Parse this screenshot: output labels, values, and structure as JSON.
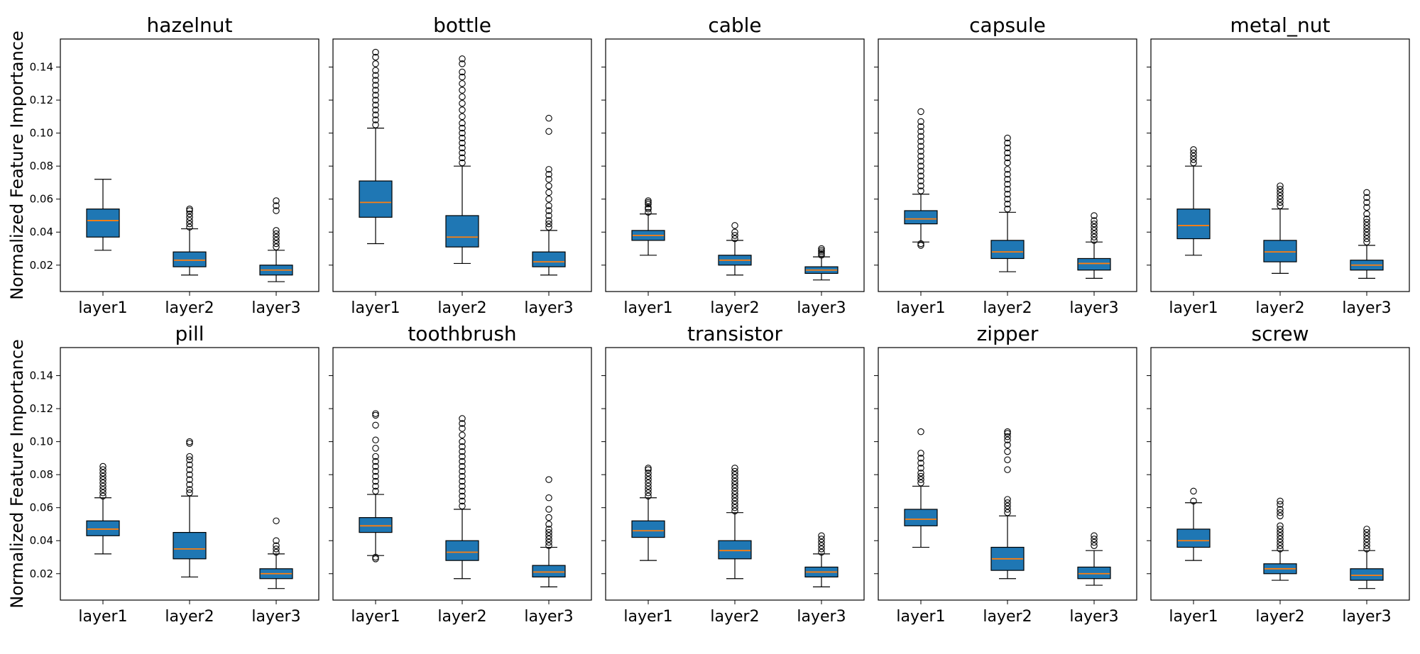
{
  "figure": {
    "ylabel": "Normalized Feature Importance",
    "ytick_labels": [
      "0.02",
      "0.04",
      "0.06",
      "0.08",
      "0.10",
      "0.12",
      "0.14"
    ]
  },
  "colors": {
    "box_fill": "#1f77b4",
    "median": "#ff7f0e",
    "edge": "#000000"
  },
  "chart_data": [
    {
      "type": "box",
      "title": "hazelnut",
      "categories": [
        "layer1",
        "layer2",
        "layer3"
      ],
      "ylim": [
        0.004,
        0.157
      ],
      "yticks": [
        0.02,
        0.04,
        0.06,
        0.08,
        0.1,
        0.12,
        0.14
      ],
      "series": [
        {
          "category": "layer1",
          "whisker_low": 0.029,
          "q1": 0.037,
          "median": 0.047,
          "q3": 0.054,
          "whisker_high": 0.072,
          "outliers": []
        },
        {
          "category": "layer2",
          "whisker_low": 0.014,
          "q1": 0.019,
          "median": 0.023,
          "q3": 0.028,
          "whisker_high": 0.042,
          "outliers": [
            0.043,
            0.045,
            0.047,
            0.049,
            0.051,
            0.053,
            0.054
          ]
        },
        {
          "category": "layer3",
          "whisker_low": 0.01,
          "q1": 0.014,
          "median": 0.017,
          "q3": 0.02,
          "whisker_high": 0.029,
          "outliers": [
            0.031,
            0.033,
            0.035,
            0.037,
            0.039,
            0.041,
            0.053,
            0.056,
            0.059
          ]
        }
      ]
    },
    {
      "type": "box",
      "title": "bottle",
      "categories": [
        "layer1",
        "layer2",
        "layer3"
      ],
      "ylim": [
        0.004,
        0.157
      ],
      "yticks": [
        0.02,
        0.04,
        0.06,
        0.08,
        0.1,
        0.12,
        0.14
      ],
      "series": [
        {
          "category": "layer1",
          "whisker_low": 0.033,
          "q1": 0.049,
          "median": 0.058,
          "q3": 0.071,
          "whisker_high": 0.103,
          "outliers": [
            0.105,
            0.108,
            0.111,
            0.114,
            0.117,
            0.12,
            0.123,
            0.126,
            0.129,
            0.132,
            0.135,
            0.138,
            0.142,
            0.146,
            0.149
          ]
        },
        {
          "category": "layer2",
          "whisker_low": 0.021,
          "q1": 0.031,
          "median": 0.037,
          "q3": 0.05,
          "whisker_high": 0.08,
          "outliers": [
            0.082,
            0.085,
            0.088,
            0.091,
            0.094,
            0.097,
            0.1,
            0.103,
            0.106,
            0.11,
            0.114,
            0.118,
            0.122,
            0.126,
            0.13,
            0.134,
            0.137,
            0.142,
            0.145
          ]
        },
        {
          "category": "layer3",
          "whisker_low": 0.014,
          "q1": 0.019,
          "median": 0.022,
          "q3": 0.028,
          "whisker_high": 0.041,
          "outliers": [
            0.043,
            0.045,
            0.047,
            0.05,
            0.053,
            0.056,
            0.06,
            0.064,
            0.068,
            0.072,
            0.075,
            0.078,
            0.101,
            0.109
          ]
        }
      ]
    },
    {
      "type": "box",
      "title": "cable",
      "categories": [
        "layer1",
        "layer2",
        "layer3"
      ],
      "ylim": [
        0.004,
        0.157
      ],
      "yticks": [
        0.02,
        0.04,
        0.06,
        0.08,
        0.1,
        0.12,
        0.14
      ],
      "series": [
        {
          "category": "layer1",
          "whisker_low": 0.026,
          "q1": 0.035,
          "median": 0.038,
          "q3": 0.041,
          "whisker_high": 0.051,
          "outliers": [
            0.052,
            0.054,
            0.055,
            0.057,
            0.058,
            0.059
          ]
        },
        {
          "category": "layer2",
          "whisker_low": 0.014,
          "q1": 0.02,
          "median": 0.023,
          "q3": 0.026,
          "whisker_high": 0.035,
          "outliers": [
            0.036,
            0.038,
            0.04,
            0.044
          ]
        },
        {
          "category": "layer3",
          "whisker_low": 0.011,
          "q1": 0.015,
          "median": 0.017,
          "q3": 0.019,
          "whisker_high": 0.025,
          "outliers": [
            0.026,
            0.027,
            0.028,
            0.029,
            0.03
          ]
        }
      ]
    },
    {
      "type": "box",
      "title": "capsule",
      "categories": [
        "layer1",
        "layer2",
        "layer3"
      ],
      "ylim": [
        0.004,
        0.157
      ],
      "yticks": [
        0.02,
        0.04,
        0.06,
        0.08,
        0.1,
        0.12,
        0.14
      ],
      "series": [
        {
          "category": "layer1",
          "whisker_low": 0.034,
          "q1": 0.045,
          "median": 0.048,
          "q3": 0.053,
          "whisker_high": 0.063,
          "outliers": [
            0.032,
            0.033,
            0.065,
            0.068,
            0.071,
            0.074,
            0.077,
            0.08,
            0.083,
            0.086,
            0.089,
            0.092,
            0.095,
            0.098,
            0.101,
            0.104,
            0.107,
            0.113
          ]
        },
        {
          "category": "layer2",
          "whisker_low": 0.016,
          "q1": 0.024,
          "median": 0.028,
          "q3": 0.035,
          "whisker_high": 0.052,
          "outliers": [
            0.054,
            0.057,
            0.06,
            0.063,
            0.066,
            0.069,
            0.072,
            0.075,
            0.078,
            0.082,
            0.085,
            0.088,
            0.091,
            0.094,
            0.097
          ]
        },
        {
          "category": "layer3",
          "whisker_low": 0.012,
          "q1": 0.017,
          "median": 0.021,
          "q3": 0.024,
          "whisker_high": 0.034,
          "outliers": [
            0.035,
            0.037,
            0.039,
            0.041,
            0.043,
            0.045,
            0.047,
            0.05
          ]
        }
      ]
    },
    {
      "type": "box",
      "title": "metal_nut",
      "categories": [
        "layer1",
        "layer2",
        "layer3"
      ],
      "ylim": [
        0.004,
        0.157
      ],
      "yticks": [
        0.02,
        0.04,
        0.06,
        0.08,
        0.1,
        0.12,
        0.14
      ],
      "series": [
        {
          "category": "layer1",
          "whisker_low": 0.026,
          "q1": 0.036,
          "median": 0.044,
          "q3": 0.054,
          "whisker_high": 0.08,
          "outliers": [
            0.082,
            0.084,
            0.086,
            0.088,
            0.09
          ]
        },
        {
          "category": "layer2",
          "whisker_low": 0.015,
          "q1": 0.022,
          "median": 0.028,
          "q3": 0.035,
          "whisker_high": 0.054,
          "outliers": [
            0.056,
            0.058,
            0.06,
            0.062,
            0.064,
            0.066,
            0.068
          ]
        },
        {
          "category": "layer3",
          "whisker_low": 0.012,
          "q1": 0.017,
          "median": 0.02,
          "q3": 0.023,
          "whisker_high": 0.032,
          "outliers": [
            0.034,
            0.036,
            0.038,
            0.04,
            0.042,
            0.044,
            0.046,
            0.048,
            0.051,
            0.055,
            0.058,
            0.061,
            0.064
          ]
        }
      ]
    },
    {
      "type": "box",
      "title": "pill",
      "categories": [
        "layer1",
        "layer2",
        "layer3"
      ],
      "ylim": [
        0.004,
        0.157
      ],
      "yticks": [
        0.02,
        0.04,
        0.06,
        0.08,
        0.1,
        0.12,
        0.14
      ],
      "series": [
        {
          "category": "layer1",
          "whisker_low": 0.032,
          "q1": 0.043,
          "median": 0.047,
          "q3": 0.052,
          "whisker_high": 0.066,
          "outliers": [
            0.067,
            0.069,
            0.071,
            0.073,
            0.075,
            0.077,
            0.079,
            0.081,
            0.083,
            0.085
          ]
        },
        {
          "category": "layer2",
          "whisker_low": 0.018,
          "q1": 0.029,
          "median": 0.035,
          "q3": 0.045,
          "whisker_high": 0.067,
          "outliers": [
            0.069,
            0.071,
            0.074,
            0.077,
            0.08,
            0.083,
            0.086,
            0.089,
            0.091,
            0.099,
            0.1
          ]
        },
        {
          "category": "layer3",
          "whisker_low": 0.011,
          "q1": 0.017,
          "median": 0.02,
          "q3": 0.023,
          "whisker_high": 0.032,
          "outliers": [
            0.033,
            0.035,
            0.037,
            0.04,
            0.052
          ]
        }
      ]
    },
    {
      "type": "box",
      "title": "toothbrush",
      "categories": [
        "layer1",
        "layer2",
        "layer3"
      ],
      "ylim": [
        0.004,
        0.157
      ],
      "yticks": [
        0.02,
        0.04,
        0.06,
        0.08,
        0.1,
        0.12,
        0.14
      ],
      "series": [
        {
          "category": "layer1",
          "whisker_low": 0.031,
          "q1": 0.045,
          "median": 0.049,
          "q3": 0.054,
          "whisker_high": 0.068,
          "outliers": [
            0.029,
            0.03,
            0.07,
            0.073,
            0.076,
            0.079,
            0.082,
            0.085,
            0.088,
            0.091,
            0.096,
            0.101,
            0.11,
            0.116,
            0.117
          ]
        },
        {
          "category": "layer2",
          "whisker_low": 0.017,
          "q1": 0.028,
          "median": 0.033,
          "q3": 0.04,
          "whisker_high": 0.059,
          "outliers": [
            0.061,
            0.064,
            0.067,
            0.07,
            0.073,
            0.076,
            0.079,
            0.082,
            0.085,
            0.088,
            0.091,
            0.094,
            0.097,
            0.1,
            0.104,
            0.108,
            0.111,
            0.114
          ]
        },
        {
          "category": "layer3",
          "whisker_low": 0.012,
          "q1": 0.018,
          "median": 0.021,
          "q3": 0.025,
          "whisker_high": 0.036,
          "outliers": [
            0.037,
            0.039,
            0.041,
            0.043,
            0.045,
            0.047,
            0.05,
            0.054,
            0.059,
            0.066,
            0.077
          ]
        }
      ]
    },
    {
      "type": "box",
      "title": "transistor",
      "categories": [
        "layer1",
        "layer2",
        "layer3"
      ],
      "ylim": [
        0.004,
        0.157
      ],
      "yticks": [
        0.02,
        0.04,
        0.06,
        0.08,
        0.1,
        0.12,
        0.14
      ],
      "series": [
        {
          "category": "layer1",
          "whisker_low": 0.028,
          "q1": 0.042,
          "median": 0.046,
          "q3": 0.052,
          "whisker_high": 0.066,
          "outliers": [
            0.067,
            0.069,
            0.071,
            0.073,
            0.075,
            0.077,
            0.079,
            0.081,
            0.083,
            0.084
          ]
        },
        {
          "category": "layer2",
          "whisker_low": 0.017,
          "q1": 0.029,
          "median": 0.034,
          "q3": 0.04,
          "whisker_high": 0.057,
          "outliers": [
            0.058,
            0.06,
            0.062,
            0.064,
            0.066,
            0.068,
            0.07,
            0.072,
            0.074,
            0.076,
            0.078,
            0.08,
            0.082,
            0.084
          ]
        },
        {
          "category": "layer3",
          "whisker_low": 0.012,
          "q1": 0.018,
          "median": 0.021,
          "q3": 0.024,
          "whisker_high": 0.032,
          "outliers": [
            0.033,
            0.035,
            0.037,
            0.039,
            0.041,
            0.043
          ]
        }
      ]
    },
    {
      "type": "box",
      "title": "zipper",
      "categories": [
        "layer1",
        "layer2",
        "layer3"
      ],
      "ylim": [
        0.004,
        0.157
      ],
      "yticks": [
        0.02,
        0.04,
        0.06,
        0.08,
        0.1,
        0.12,
        0.14
      ],
      "series": [
        {
          "category": "layer1",
          "whisker_low": 0.036,
          "q1": 0.049,
          "median": 0.053,
          "q3": 0.059,
          "whisker_high": 0.073,
          "outliers": [
            0.075,
            0.077,
            0.079,
            0.081,
            0.084,
            0.087,
            0.09,
            0.093,
            0.106
          ]
        },
        {
          "category": "layer2",
          "whisker_low": 0.017,
          "q1": 0.022,
          "median": 0.029,
          "q3": 0.036,
          "whisker_high": 0.055,
          "outliers": [
            0.057,
            0.059,
            0.061,
            0.063,
            0.065,
            0.083,
            0.089,
            0.094,
            0.098,
            0.101,
            0.103,
            0.105,
            0.106
          ]
        },
        {
          "category": "layer3",
          "whisker_low": 0.013,
          "q1": 0.017,
          "median": 0.02,
          "q3": 0.024,
          "whisker_high": 0.034,
          "outliers": [
            0.037,
            0.039,
            0.041,
            0.043
          ]
        }
      ]
    },
    {
      "type": "box",
      "title": "screw",
      "categories": [
        "layer1",
        "layer2",
        "layer3"
      ],
      "ylim": [
        0.004,
        0.157
      ],
      "yticks": [
        0.02,
        0.04,
        0.06,
        0.08,
        0.1,
        0.12,
        0.14
      ],
      "series": [
        {
          "category": "layer1",
          "whisker_low": 0.028,
          "q1": 0.036,
          "median": 0.04,
          "q3": 0.047,
          "whisker_high": 0.063,
          "outliers": [
            0.064,
            0.07
          ]
        },
        {
          "category": "layer2",
          "whisker_low": 0.016,
          "q1": 0.02,
          "median": 0.023,
          "q3": 0.026,
          "whisker_high": 0.034,
          "outliers": [
            0.035,
            0.037,
            0.039,
            0.041,
            0.043,
            0.045,
            0.047,
            0.049,
            0.055,
            0.057,
            0.059,
            0.062,
            0.064
          ]
        },
        {
          "category": "layer3",
          "whisker_low": 0.011,
          "q1": 0.016,
          "median": 0.019,
          "q3": 0.023,
          "whisker_high": 0.034,
          "outliers": [
            0.035,
            0.037,
            0.039,
            0.041,
            0.043,
            0.045,
            0.047
          ]
        }
      ]
    }
  ]
}
